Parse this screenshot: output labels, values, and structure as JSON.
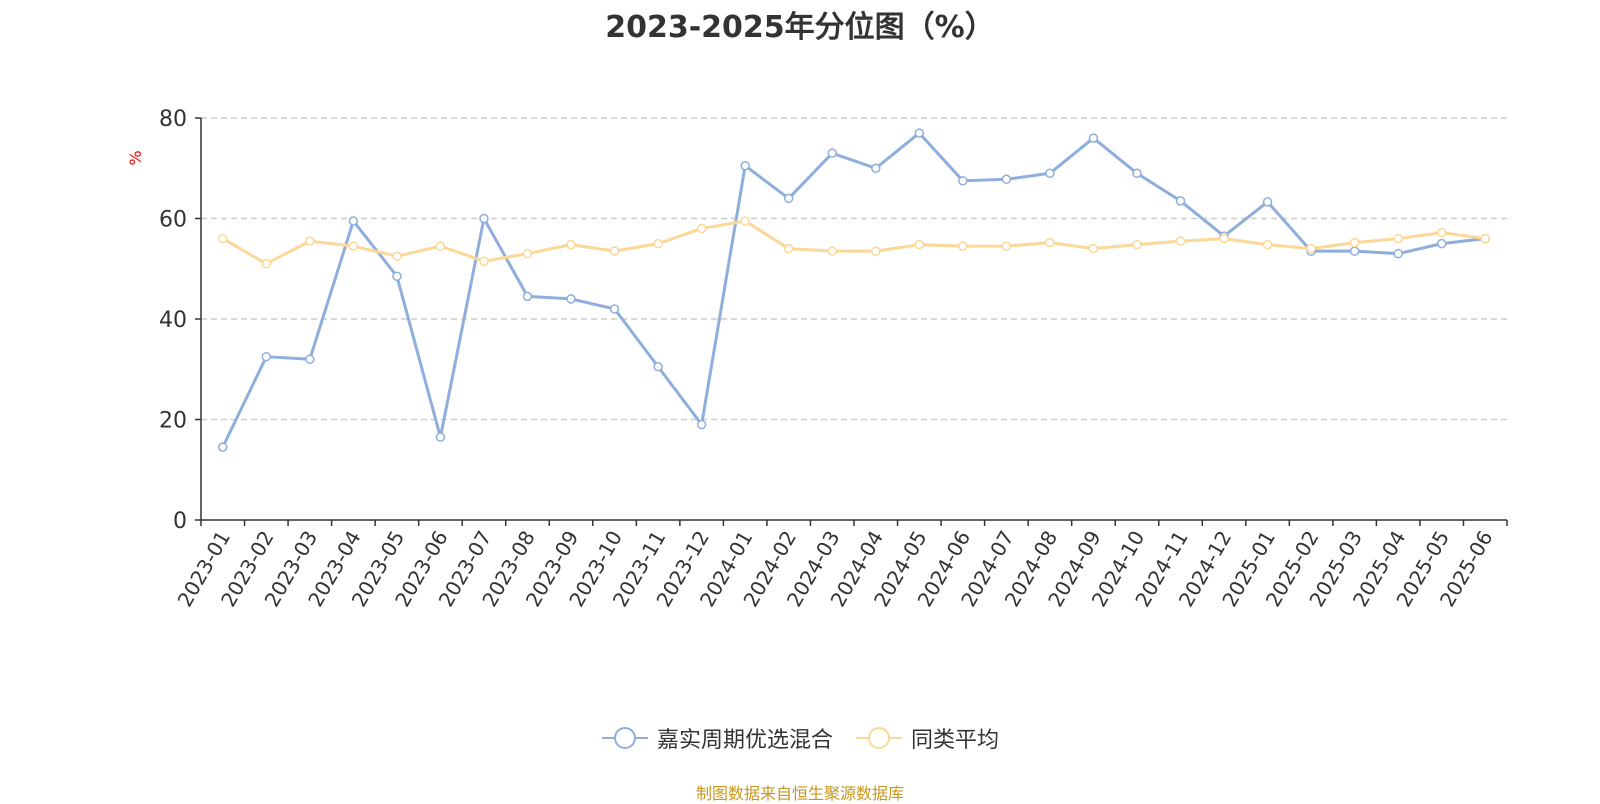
{
  "chart_data": {
    "type": "line",
    "title": "2023-2025年分位图（%）",
    "ylabel": "%",
    "xlabel": "",
    "ylim": [
      0,
      80
    ],
    "yticks": [
      0,
      20,
      40,
      60,
      80
    ],
    "grid": true,
    "legend_position": "bottom",
    "categories": [
      "2023-01",
      "2023-02",
      "2023-03",
      "2023-04",
      "2023-05",
      "2023-06",
      "2023-07",
      "2023-08",
      "2023-09",
      "2023-10",
      "2023-11",
      "2023-12",
      "2024-01",
      "2024-02",
      "2024-03",
      "2024-04",
      "2024-05",
      "2024-06",
      "2024-07",
      "2024-08",
      "2024-09",
      "2024-10",
      "2024-11",
      "2024-12",
      "2025-01",
      "2025-02",
      "2025-03",
      "2025-04",
      "2025-05",
      "2025-06"
    ],
    "series": [
      {
        "name": "嘉实周期优选混合",
        "color": "#8eaedb",
        "values": [
          14.5,
          32.5,
          32.0,
          59.5,
          48.5,
          16.5,
          60.0,
          44.5,
          44.0,
          42.0,
          30.5,
          19.0,
          70.5,
          64.0,
          73.0,
          70.0,
          77.0,
          67.5,
          67.8,
          69.0,
          76.0,
          69.0,
          63.5,
          56.5,
          63.3,
          53.5,
          53.5,
          53.0,
          55.0,
          56.0
        ]
      },
      {
        "name": "同类平均",
        "color": "#fbd898",
        "values": [
          56.0,
          51.0,
          55.5,
          54.5,
          52.5,
          54.5,
          51.5,
          53.0,
          54.8,
          53.5,
          55.0,
          58.0,
          59.5,
          54.0,
          53.5,
          53.5,
          54.8,
          54.5,
          54.5,
          55.2,
          54.0,
          54.8,
          55.5,
          56.0,
          54.8,
          54.0,
          55.2,
          56.0,
          57.2,
          56.0
        ]
      }
    ]
  },
  "source_note": "制图数据来自恒生聚源数据库",
  "colors": {
    "axis": "#333333",
    "grid": "#cccccc",
    "ylabel": "#ff0000",
    "source": "#c8961e"
  }
}
